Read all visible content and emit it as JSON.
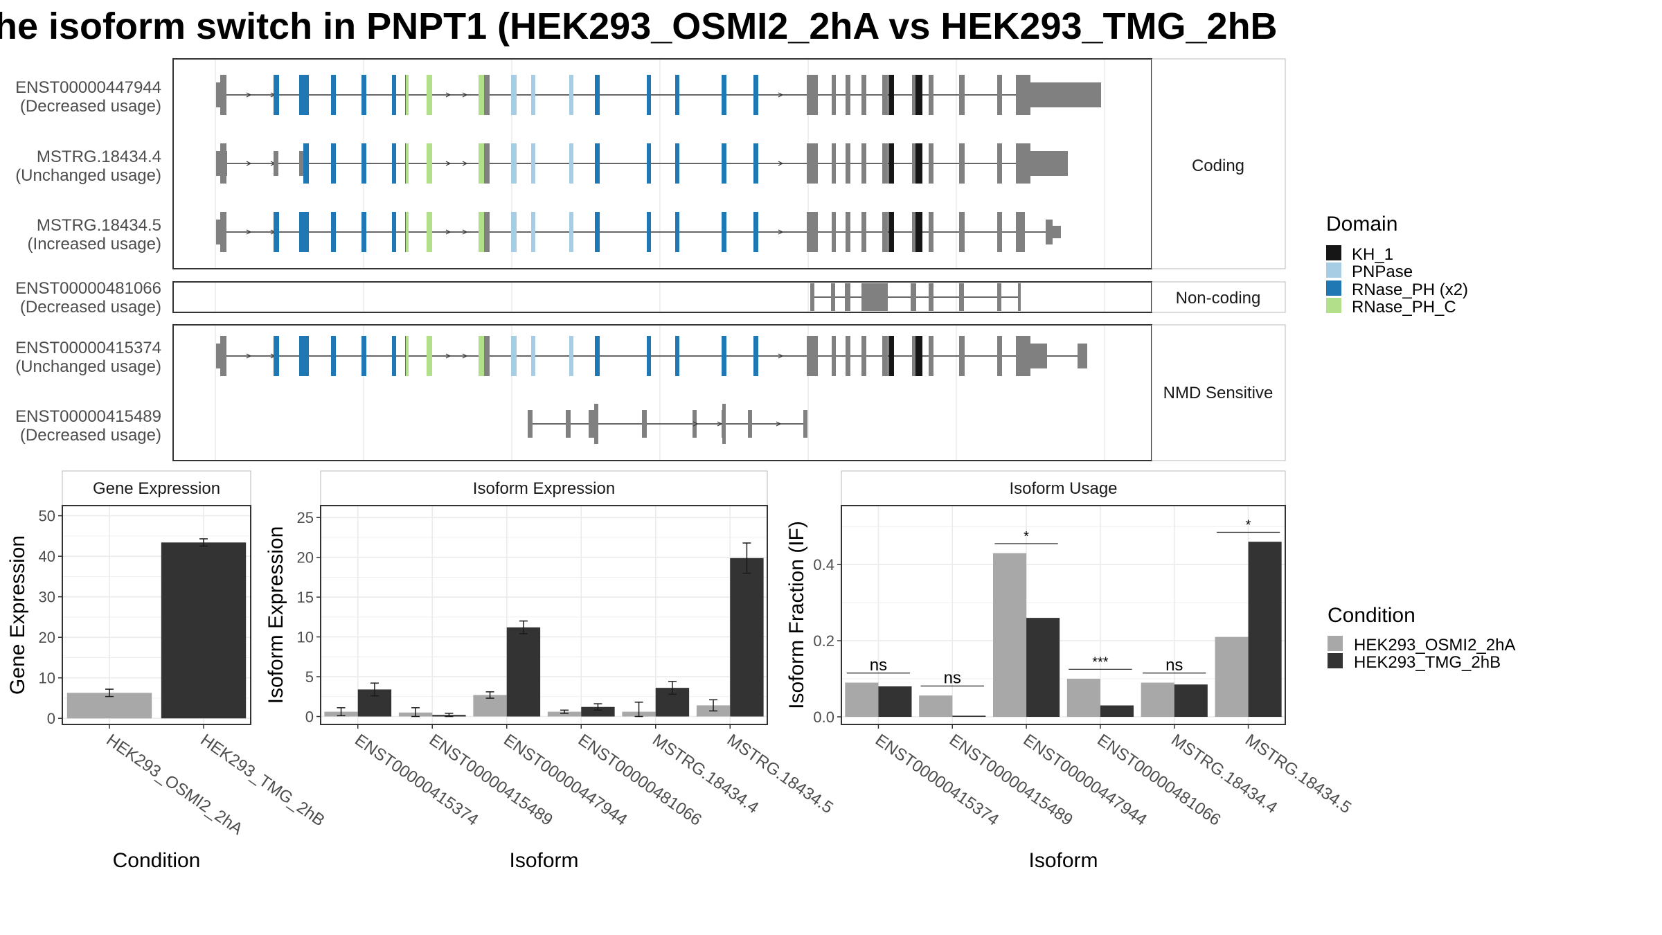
{
  "title": "he isoform switch in PNPT1 (HEK293_OSMI2_2hA vs HEK293_TMG_2hB",
  "domain_legend": {
    "title": "Domain",
    "items": [
      {
        "label": "KH_1",
        "color": "#161616"
      },
      {
        "label": "PNPase",
        "color": "#a6cde3"
      },
      {
        "label": "RNase_PH (x2)",
        "color": "#1f78b4"
      },
      {
        "label": "RNase_PH_C",
        "color": "#b2df8a"
      }
    ]
  },
  "condition_legend": {
    "title": "Condition",
    "items": [
      {
        "label": "HEK293_OSMI2_2hA",
        "color": "#a8a8a8"
      },
      {
        "label": "HEK293_TMG_2hB",
        "color": "#333333"
      }
    ]
  },
  "colors": {
    "exon": "#808080",
    "panel_border": "#333333",
    "strip_bg": "#ffffff",
    "grid": "#ebebeb"
  },
  "transcript_panels": [
    {
      "label": "Coding",
      "transcripts": [
        {
          "id": "ENST00000447944",
          "usage": "(Decreased usage)"
        },
        {
          "id": "MSTRG.18434.4",
          "usage": "(Unchanged usage)"
        },
        {
          "id": "MSTRG.18434.5",
          "usage": "(Increased usage)"
        }
      ]
    },
    {
      "label": "Non-coding",
      "transcripts": [
        {
          "id": "ENST00000481066",
          "usage": "(Decreased usage)"
        }
      ]
    },
    {
      "label": "NMD Sensitive",
      "transcripts": [
        {
          "id": "ENST00000415374",
          "usage": "(Unchanged usage)"
        },
        {
          "id": "ENST00000415489",
          "usage": "(Decreased usage)"
        }
      ]
    }
  ],
  "chart_data": [
    {
      "type": "bar",
      "title": "Gene Expression",
      "xlabel": "Condition",
      "ylabel": "Gene Expression",
      "categories": [
        "HEK293_OSMI2_2hA",
        "HEK293_TMG_2hB"
      ],
      "values": [
        6.3,
        43.4
      ],
      "errors": [
        0.9,
        0.9
      ],
      "ylim": [
        -1.5,
        52.5
      ],
      "yticks": [
        0,
        10,
        20,
        30,
        40,
        50
      ]
    },
    {
      "type": "bar",
      "title": "Isoform Expression",
      "xlabel": "Isoform",
      "ylabel": "Isoform Expression",
      "categories": [
        "ENST00000415374",
        "ENST00000415489",
        "ENST00000447944",
        "ENST00000481066",
        "MSTRG.18434.4",
        "MSTRG.18434.5"
      ],
      "series": [
        {
          "name": "HEK293_OSMI2_2hA",
          "values": [
            0.6,
            0.5,
            2.7,
            0.6,
            0.6,
            1.4
          ],
          "errors": [
            0.5,
            0.6,
            0.4,
            0.2,
            1.2,
            0.7
          ]
        },
        {
          "name": "HEK293_TMG_2hB",
          "values": [
            3.4,
            0.2,
            11.2,
            1.2,
            3.6,
            19.9
          ],
          "errors": [
            0.8,
            0.2,
            0.8,
            0.4,
            0.8,
            1.9
          ]
        }
      ],
      "ylim": [
        -1.0,
        26.5
      ],
      "yticks": [
        0,
        5,
        10,
        15,
        20,
        25
      ]
    },
    {
      "type": "bar",
      "title": "Isoform Usage",
      "xlabel": "Isoform",
      "ylabel": "Isoform Fraction (IF)",
      "categories": [
        "ENST00000415374",
        "ENST00000415489",
        "ENST00000447944",
        "ENST00000481066",
        "MSTRG.18434.4",
        "MSTRG.18434.5"
      ],
      "series": [
        {
          "name": "HEK293_OSMI2_2hA",
          "values": [
            0.09,
            0.056,
            0.43,
            0.1,
            0.09,
            0.21
          ]
        },
        {
          "name": "HEK293_TMG_2hB",
          "values": [
            0.08,
            0.003,
            0.26,
            0.03,
            0.085,
            0.46
          ]
        }
      ],
      "significance": [
        "ns",
        "ns",
        "*",
        "***",
        "ns",
        "*"
      ],
      "ylim": [
        -0.02,
        0.555
      ],
      "yticks": [
        0.0,
        0.2,
        0.4
      ],
      "ytick_labels": [
        "0.0",
        "0.2",
        "0.4"
      ]
    }
  ]
}
